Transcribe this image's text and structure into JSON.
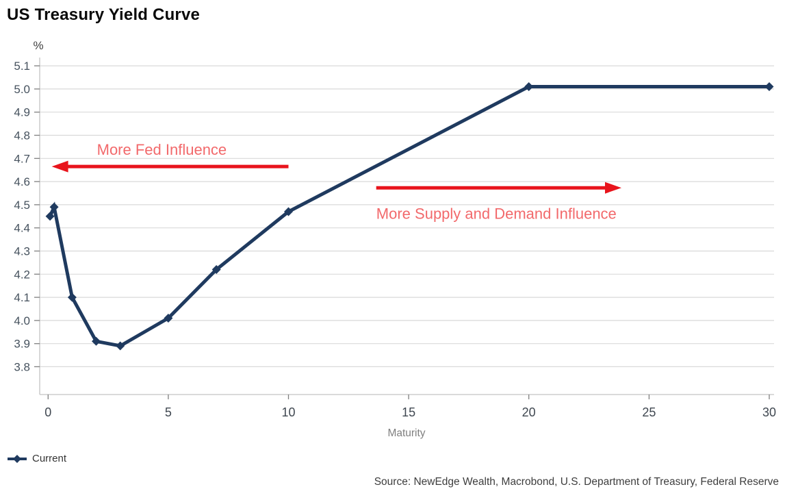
{
  "header": {
    "title": "US Treasury Yield Curve"
  },
  "chart_data": {
    "type": "line",
    "title": "US Treasury Yield Curve",
    "unit_label": "%",
    "xlabel": "Maturity",
    "series": [
      {
        "name": "Current",
        "marker": "diamond",
        "x": [
          0.08,
          0.25,
          1,
          2,
          3,
          5,
          7,
          10,
          20,
          30
        ],
        "y": [
          4.45,
          4.49,
          4.1,
          3.91,
          3.89,
          4.01,
          4.22,
          4.47,
          5.01,
          5.01
        ]
      }
    ],
    "x_ticks": [
      0,
      5,
      10,
      15,
      20,
      25,
      30
    ],
    "y_ticks": [
      3.8,
      3.9,
      4.0,
      4.1,
      4.2,
      4.3,
      4.4,
      4.5,
      4.6,
      4.7,
      4.8,
      4.9,
      5.0,
      5.1
    ],
    "xlim": [
      -0.35,
      30.2
    ],
    "ylim": [
      3.68,
      5.124
    ],
    "grid": "horizontal",
    "legend_position": "bottom-left",
    "annotations": [
      {
        "text": "More Fed Influence",
        "arrow": {
          "direction": "left",
          "x_from": 10.0,
          "x_to": 0.15,
          "y": 4.665
        },
        "text_pos": {
          "x": 4.73,
          "y": 4.74
        }
      },
      {
        "text": "More Supply and Demand Influence",
        "arrow": {
          "direction": "right",
          "x_from": 13.65,
          "x_to": 23.85,
          "y": 4.573
        },
        "text_pos": {
          "x": 18.65,
          "y": 4.462
        }
      }
    ]
  },
  "footer": {
    "source": "Source: NewEdge Wealth, Macrobond, U.S. Department of Treasury, Federal Reserve"
  },
  "colors": {
    "line": "#1f3a5f",
    "arrow_red": "#e8141c",
    "annotation_text": "#f2696b",
    "grid": "#d9d9d9",
    "axis": "#c3c3c3",
    "tick_mark": "#7f7f7f",
    "y_tick_label": "#46525e",
    "x_tick_label": "#3f4750",
    "axis_label": "#7f7f7f",
    "title": "#0a0a0a",
    "legend_label": "#333333",
    "source": "#3d3d3d",
    "background": "#ffffff"
  }
}
